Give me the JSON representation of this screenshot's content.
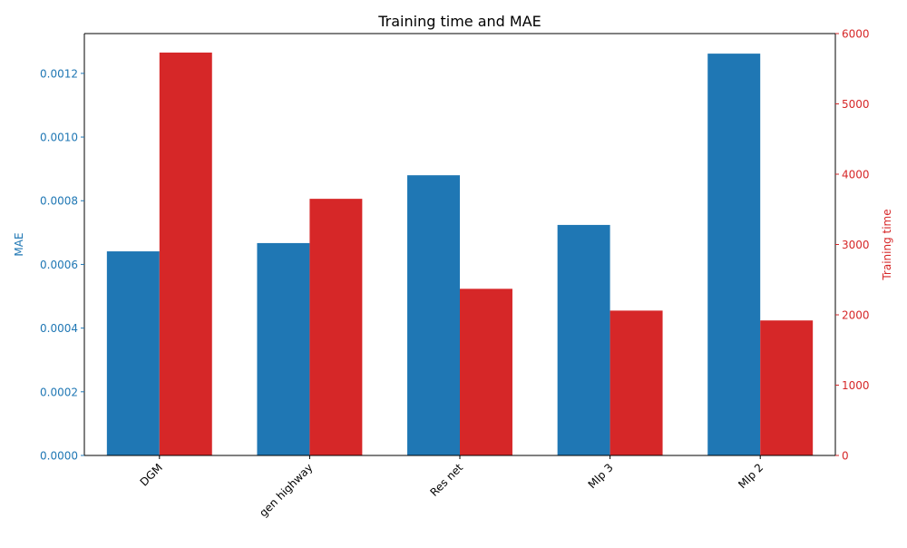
{
  "chart_data": {
    "type": "bar",
    "title": "Training time and MAE",
    "categories": [
      "DGM",
      "gen highway",
      "Res net",
      "Mlp 3",
      "Mlp 2"
    ],
    "series": [
      {
        "name": "MAE",
        "axis": "left",
        "color": "#1f77b4",
        "values": [
          0.000641,
          0.000667,
          0.00088,
          0.000724,
          0.001262
        ]
      },
      {
        "name": "Training time",
        "axis": "right",
        "color": "#d62728",
        "values": [
          5730,
          3650,
          2370,
          2060,
          1920
        ]
      }
    ],
    "ylabel_left": "MAE",
    "ylabel_right": "Training time",
    "ylim_left": [
      0,
      0.001325
    ],
    "ylim_right": [
      0,
      6000
    ],
    "yticks_left": [
      "0.0000",
      "0.0002",
      "0.0004",
      "0.0006",
      "0.0008",
      "0.0010",
      "0.0012"
    ],
    "yticks_left_values": [
      0,
      0.0002,
      0.0004,
      0.0006,
      0.0008,
      0.001,
      0.0012
    ],
    "yticks_right": [
      "0",
      "1000",
      "2000",
      "3000",
      "4000",
      "5000",
      "6000"
    ],
    "yticks_right_values": [
      0,
      1000,
      2000,
      3000,
      4000,
      5000,
      6000
    ],
    "xtick_rotation_deg": 45,
    "grid": false,
    "legend": "none"
  }
}
